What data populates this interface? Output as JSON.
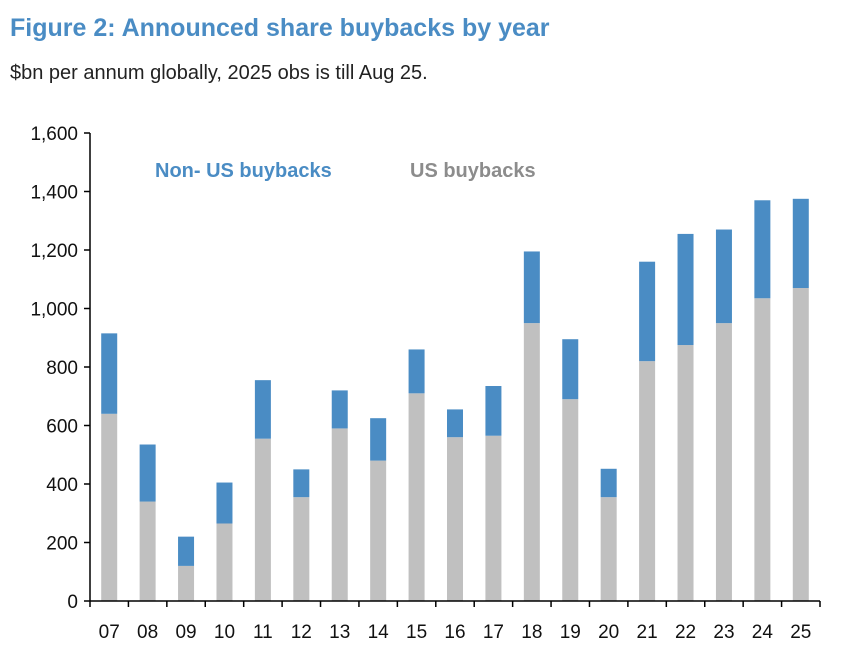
{
  "title": "Figure 2: Announced share buybacks by year",
  "subtitle": "$bn per annum globally, 2025 obs is till Aug 25.",
  "colors": {
    "us": "#c0c0c0",
    "non_us": "#4a8cc4",
    "title": "#4a8cc4"
  },
  "chart_data": {
    "type": "bar",
    "stacked": true,
    "title": "Figure 2: Announced share buybacks by year",
    "subtitle": "$bn per annum globally, 2025 obs is till Aug 25.",
    "xlabel": "",
    "ylabel": "",
    "ylim": [
      0,
      1600
    ],
    "yticks": [
      0,
      200,
      400,
      600,
      800,
      1000,
      1200,
      1400,
      1600
    ],
    "ytick_labels": [
      "0",
      "200",
      "400",
      "600",
      "800",
      "1,000",
      "1,200",
      "1,400",
      "1,600"
    ],
    "grid": false,
    "legend_position": "top, inside plot",
    "categories": [
      "07",
      "08",
      "09",
      "10",
      "11",
      "12",
      "13",
      "14",
      "15",
      "16",
      "17",
      "18",
      "19",
      "20",
      "21",
      "22",
      "23",
      "24",
      "25"
    ],
    "series": [
      {
        "name": "US buybacks",
        "color": "#c0c0c0",
        "values": [
          640,
          340,
          120,
          265,
          555,
          355,
          590,
          480,
          710,
          560,
          565,
          950,
          690,
          355,
          820,
          875,
          950,
          1035,
          1070
        ]
      },
      {
        "name": "Non- US buybacks",
        "color": "#4a8cc4",
        "values": [
          275,
          195,
          100,
          140,
          200,
          95,
          130,
          145,
          150,
          95,
          170,
          245,
          205,
          97,
          340,
          380,
          320,
          335,
          305
        ]
      }
    ]
  }
}
